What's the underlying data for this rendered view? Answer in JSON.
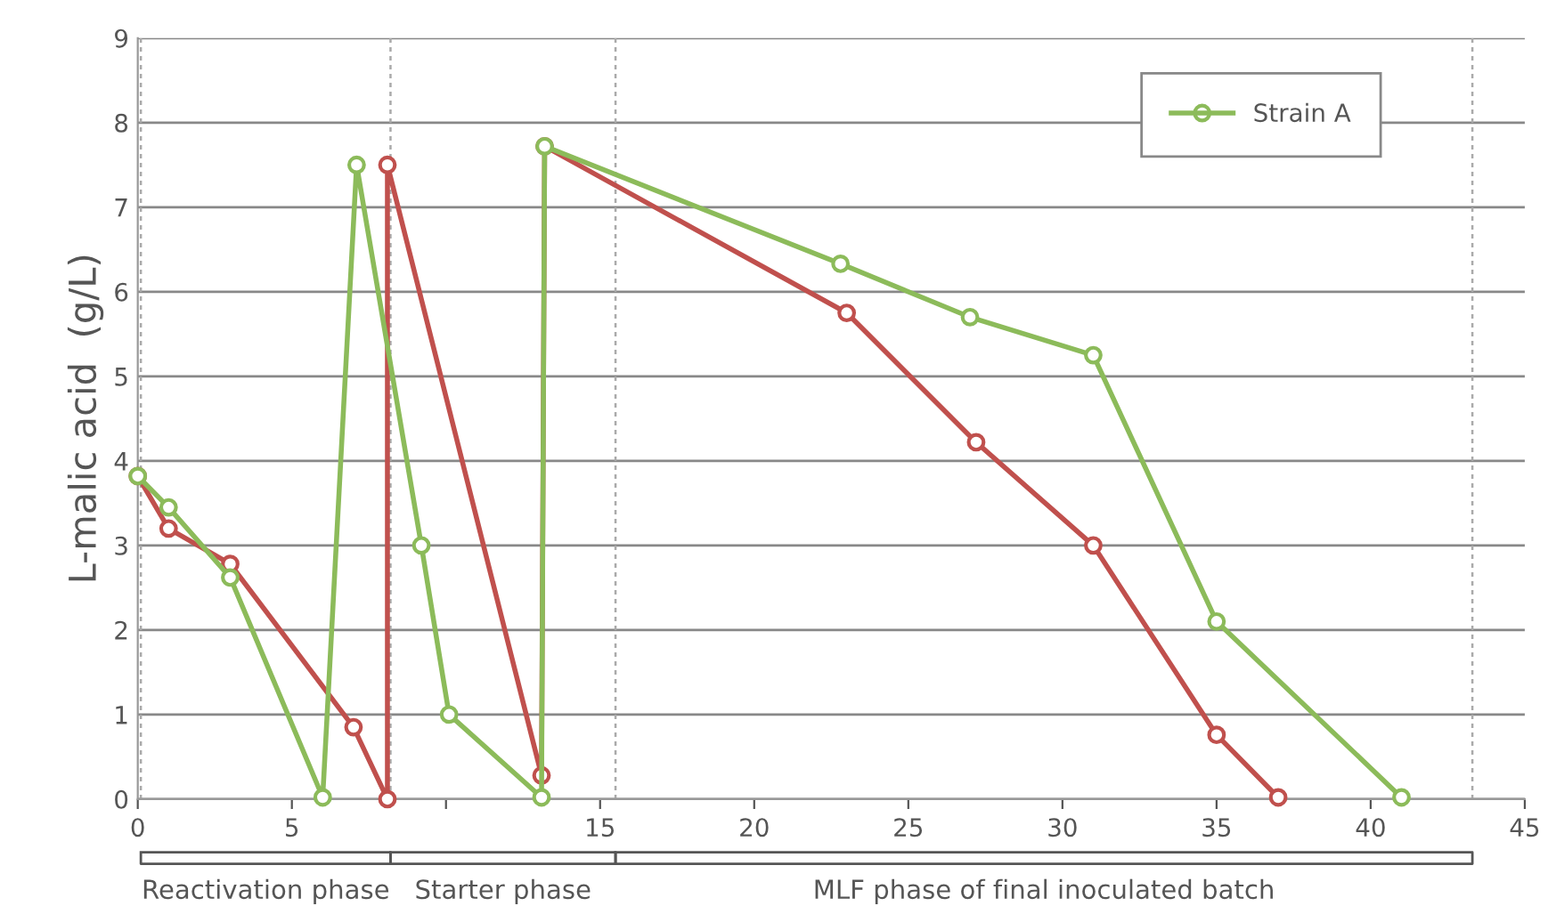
{
  "chart_data": {
    "type": "line",
    "ylabel": "L-malic acid  (g/L)",
    "xlim": [
      0,
      45
    ],
    "ylim": [
      0,
      9
    ],
    "xticks": [
      0,
      5,
      {
        "value": 10,
        "label": null
      },
      15,
      20,
      25,
      30,
      35,
      40,
      45
    ],
    "yticks": [
      0,
      1,
      2,
      3,
      4,
      5,
      6,
      7,
      8,
      9
    ],
    "grid": "y",
    "legend": "top right",
    "marker": "circle",
    "line_style": "solid",
    "ref_lines": [
      {
        "axis": "x",
        "value": 0.1,
        "color": "#aaaaaa",
        "line_style": "dotted"
      },
      {
        "axis": "x",
        "value": 8.2,
        "color": "#aaaaaa",
        "line_style": "dotted"
      },
      {
        "axis": "x",
        "value": 15.5,
        "color": "#aaaaaa",
        "line_style": "dotted"
      },
      {
        "axis": "x",
        "value": 43.3,
        "color": "#aaaaaa",
        "line_style": "dotted"
      }
    ],
    "annotations": [
      "Reactivation phase",
      "Starter phase",
      "MLF phase of final inoculated batch"
    ],
    "series": [
      {
        "color": "#c0504d",
        "x": [
          0,
          1.0,
          3.0,
          7.0,
          8.1,
          8.1,
          13.1,
          13.2,
          23.0,
          27.2,
          31.0,
          35.0,
          37.0
        ],
        "values": [
          3.82,
          3.2,
          2.78,
          0.85,
          0,
          7.5,
          0.28,
          7.72,
          5.75,
          4.22,
          3.0,
          0.76,
          0.02
        ]
      },
      {
        "name": "Strain A",
        "color": "#8cbb5a",
        "x": [
          0,
          1.0,
          3.0,
          6.0,
          7.1,
          9.2,
          10.1,
          13.1,
          13.2,
          22.8,
          27.0,
          31.0,
          35.0,
          41.0
        ],
        "values": [
          3.82,
          3.45,
          2.62,
          0.02,
          7.5,
          3.0,
          1.0,
          0.02,
          7.72,
          6.33,
          5.7,
          5.25,
          2.1,
          0.02
        ]
      }
    ]
  }
}
